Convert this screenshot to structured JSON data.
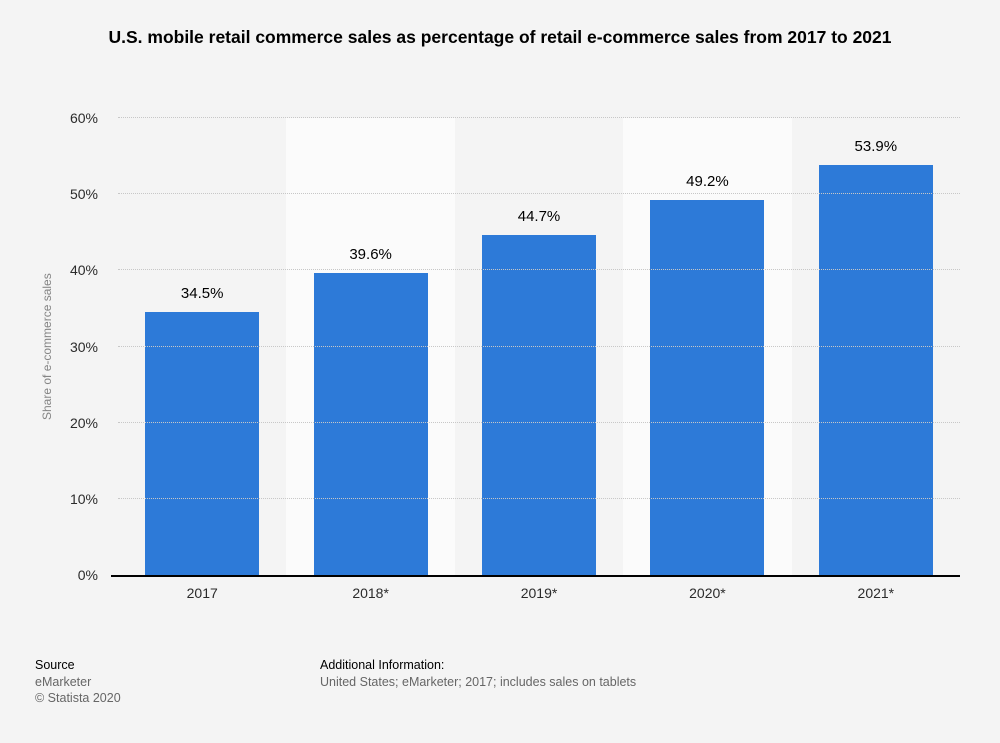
{
  "title": "U.S. mobile retail commerce sales as percentage of retail e-commerce sales from 2017 to 2021",
  "chart_data": {
    "type": "bar",
    "categories": [
      "2017",
      "2018*",
      "2019*",
      "2020*",
      "2021*"
    ],
    "values": [
      34.5,
      39.6,
      44.7,
      49.2,
      53.9
    ],
    "value_labels": [
      "34.5%",
      "39.6%",
      "44.7%",
      "49.2%",
      "53.9%"
    ],
    "title": "U.S. mobile retail commerce sales as percentage of retail e-commerce sales from 2017 to 2021",
    "xlabel": "",
    "ylabel": "Share of e-commerce sales",
    "ylim": [
      0,
      60
    ],
    "yticks": [
      {
        "value": 0,
        "label": "0%"
      },
      {
        "value": 10,
        "label": "10%"
      },
      {
        "value": 20,
        "label": "20%"
      },
      {
        "value": 30,
        "label": "30%"
      },
      {
        "value": 40,
        "label": "40%"
      },
      {
        "value": 50,
        "label": "50%"
      },
      {
        "value": 60,
        "label": "60%"
      }
    ],
    "grid": "horizontal-dotted",
    "legend": "none",
    "bar_color": "#2d7ad8",
    "band_alt_color": "#fbfbfb",
    "background_color": "#f4f4f4"
  },
  "footer": {
    "source_label": "Source",
    "source_value": "eMarketer",
    "copyright": "© Statista 2020",
    "additional_label": "Additional Information:",
    "additional_value": "United States; eMarketer; 2017; includes sales on tablets"
  }
}
